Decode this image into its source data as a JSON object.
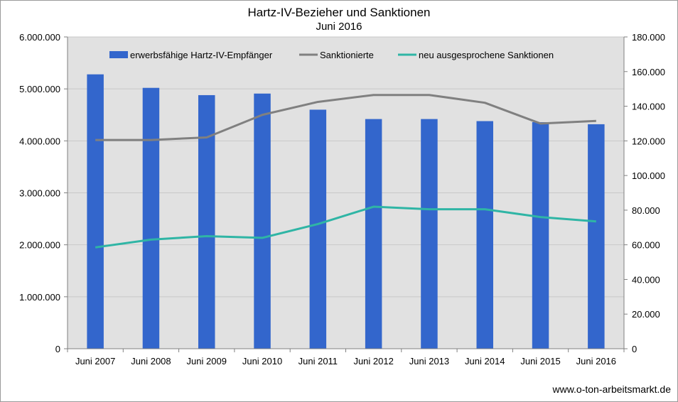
{
  "chart_data": {
    "type": "bar",
    "title": "Hartz-IV-Bezieher und Sanktionen",
    "subtitle": "Juni 2016",
    "categories": [
      "Juni 2007",
      "Juni 2008",
      "Juni 2009",
      "Juni 2010",
      "Juni 2011",
      "Juni 2012",
      "Juni 2013",
      "Juni 2014",
      "Juni 2015",
      "Juni 2016"
    ],
    "y_left": {
      "ylim": [
        0,
        6000000
      ],
      "ticks": [
        "0",
        "1.000.000",
        "2.000.000",
        "3.000.000",
        "4.000.000",
        "5.000.000",
        "6.000.000"
      ]
    },
    "y_right": {
      "ylim": [
        0,
        180000
      ],
      "ticks": [
        "0",
        "20.000",
        "40.000",
        "60.000",
        "80.000",
        "100.000",
        "120.000",
        "140.000",
        "160.000",
        "180.000"
      ]
    },
    "series": [
      {
        "name": "erwerbsfähige Hartz-IV-Empfänger",
        "kind": "bar",
        "axis": "left",
        "color": "#3366cc",
        "values": [
          5280000,
          5020000,
          4880000,
          4910000,
          4600000,
          4420000,
          4420000,
          4380000,
          4360000,
          4320000
        ]
      },
      {
        "name": "Sanktionierte",
        "kind": "line",
        "axis": "right",
        "color": "#808080",
        "values": [
          120500,
          120500,
          122000,
          135000,
          142500,
          146500,
          146500,
          142000,
          130000,
          131500
        ]
      },
      {
        "name": "neu ausgesprochene Sanktionen",
        "kind": "line",
        "axis": "right",
        "color": "#2fb5a5",
        "values": [
          58500,
          63000,
          65000,
          64000,
          72000,
          82000,
          80500,
          80500,
          76000,
          73500
        ]
      }
    ],
    "grid": true,
    "legend": "top",
    "plot_background": "#e1e1e1"
  },
  "footer": {
    "source": "www.o-ton-arbeitsmarkt.de"
  }
}
